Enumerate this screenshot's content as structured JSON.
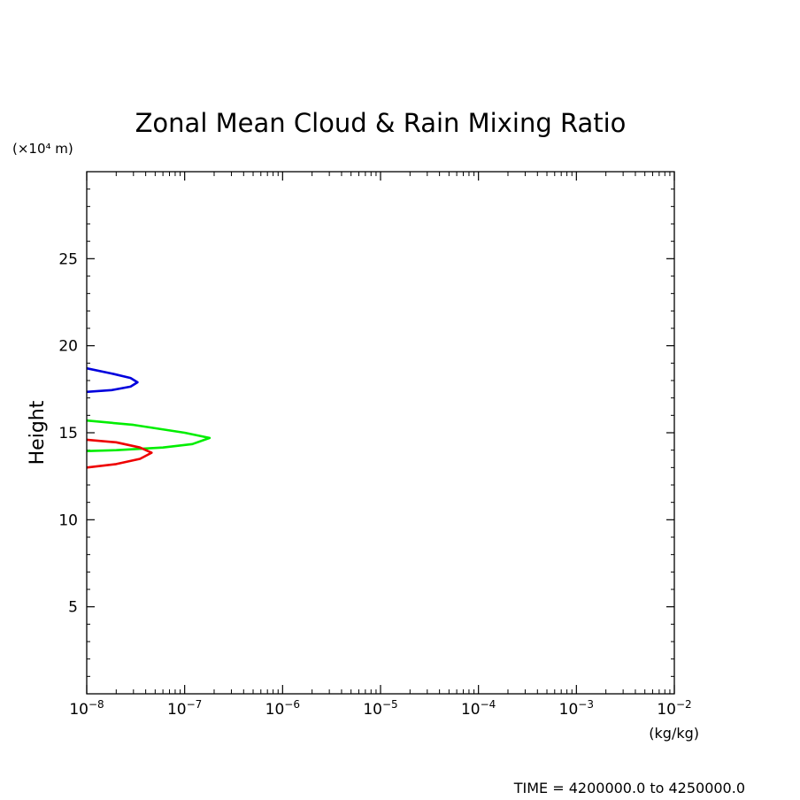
{
  "chart_data": {
    "type": "line",
    "title": "Zonal Mean Cloud & Rain Mixing Ratio",
    "ylabel": "Height",
    "yunit": "(×10⁴ m)",
    "xunit": "(kg/kg)",
    "xscale": "log",
    "xlim": [
      1e-08,
      0.01
    ],
    "ylim": [
      0,
      30
    ],
    "xticks": [
      {
        "value": 1e-08,
        "base": "10",
        "exp": "−8"
      },
      {
        "value": 1e-07,
        "base": "10",
        "exp": "−7"
      },
      {
        "value": 1e-06,
        "base": "10",
        "exp": "−6"
      },
      {
        "value": 1e-05,
        "base": "10",
        "exp": "−5"
      },
      {
        "value": 0.0001,
        "base": "10",
        "exp": "−4"
      },
      {
        "value": 0.001,
        "base": "10",
        "exp": "−3"
      },
      {
        "value": 0.01,
        "base": "10",
        "exp": "−2"
      }
    ],
    "yticks": [
      5,
      10,
      15,
      20,
      25
    ],
    "grid": false,
    "series": [
      {
        "color": "#0000dd",
        "points": [
          [
            1e-08,
            18.7
          ],
          [
            1.8e-08,
            18.4
          ],
          [
            2.8e-08,
            18.15
          ],
          [
            3.3e-08,
            17.9
          ],
          [
            2.8e-08,
            17.65
          ],
          [
            1.8e-08,
            17.45
          ],
          [
            1e-08,
            17.35
          ]
        ]
      },
      {
        "color": "#00ee00",
        "points": [
          [
            1e-08,
            15.7
          ],
          [
            3e-08,
            15.45
          ],
          [
            1e-07,
            15.0
          ],
          [
            1.8e-07,
            14.7
          ],
          [
            1.2e-07,
            14.35
          ],
          [
            6e-08,
            14.15
          ],
          [
            2e-08,
            14.0
          ],
          [
            1e-08,
            13.95
          ]
        ]
      },
      {
        "color": "#ee0000",
        "points": [
          [
            1e-08,
            14.6
          ],
          [
            2e-08,
            14.45
          ],
          [
            3.5e-08,
            14.15
          ],
          [
            4.6e-08,
            13.85
          ],
          [
            3.5e-08,
            13.5
          ],
          [
            2e-08,
            13.2
          ],
          [
            1e-08,
            13.0
          ]
        ]
      }
    ]
  },
  "footer": {
    "time_label": "TIME = 4200000.0 to 4250000.0"
  }
}
